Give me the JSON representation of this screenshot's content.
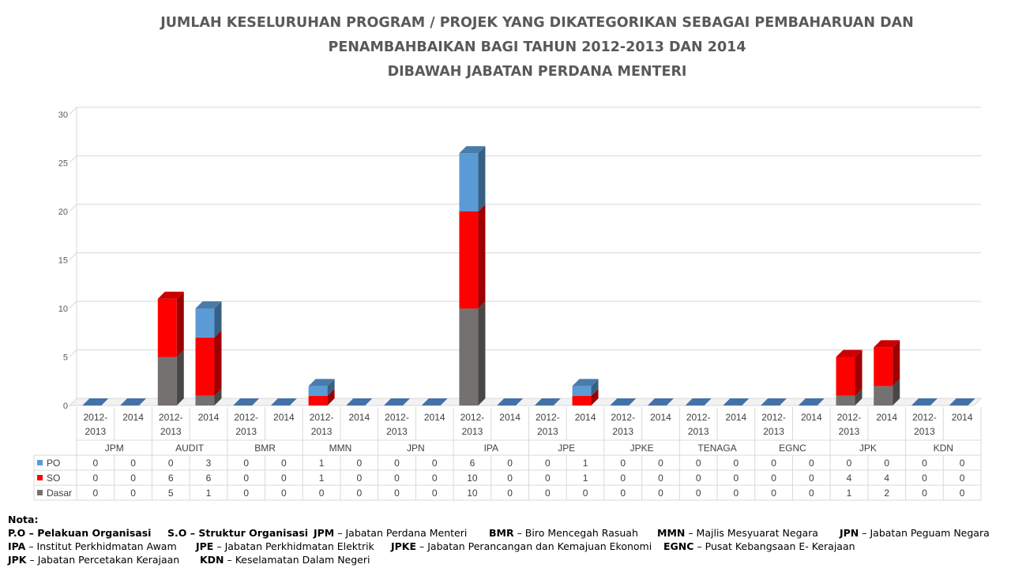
{
  "chart_data": {
    "type": "bar",
    "stacked": true,
    "title": [
      "JUMLAH KESELURUHAN PROGRAM / PROJEK YANG DIKATEGORIKAN SEBAGAI PEMBAHARUAN DAN",
      "PENAMBAHBAIKAN BAGI TAHUN 2012-2013 DAN 2014",
      "DIBAWAH JABATAN PERDANA MENTERI"
    ],
    "groups": [
      "JPM",
      "AUDIT",
      "BMR",
      "MMN",
      "JPN",
      "IPA",
      "JPE",
      "JPKE",
      "TENAGA",
      "EGNC",
      "JPK",
      "KDN"
    ],
    "subcategories": [
      [
        "2012-",
        "2013"
      ],
      [
        "2014"
      ]
    ],
    "ylim": [
      0,
      30
    ],
    "yticks": [
      0,
      5,
      10,
      15,
      20,
      25,
      30
    ],
    "grid": true,
    "legend": "data-table",
    "series": [
      {
        "name": "PO",
        "color": "#5b9bd5",
        "values": [
          0,
          0,
          0,
          3,
          0,
          0,
          1,
          0,
          0,
          0,
          6,
          0,
          0,
          1,
          0,
          0,
          0,
          0,
          0,
          0,
          0,
          0,
          0,
          0
        ]
      },
      {
        "name": "SO",
        "color": "#ff0000",
        "values": [
          0,
          0,
          6,
          6,
          0,
          0,
          1,
          0,
          0,
          0,
          10,
          0,
          0,
          1,
          0,
          0,
          0,
          0,
          0,
          0,
          4,
          4,
          0,
          0
        ]
      },
      {
        "name": "Dasar",
        "color": "#767171",
        "values": [
          0,
          0,
          5,
          1,
          0,
          0,
          0,
          0,
          0,
          0,
          10,
          0,
          0,
          0,
          0,
          0,
          0,
          0,
          0,
          0,
          1,
          2,
          0,
          0
        ]
      }
    ]
  },
  "notes": {
    "header": "Nota:",
    "rows": [
      [
        {
          "abbr": "P.O",
          "sep": " – ",
          "desc": "Pelakuan Organisasi",
          "bold_desc": true
        },
        {
          "abbr": "S.O",
          "sep": " – ",
          "desc": "Struktur Organisasi",
          "bold_desc": true
        },
        {
          "abbr": "JPM",
          "sep": " – ",
          "desc": "Jabatan Perdana Menteri",
          "bold_desc": false
        },
        {
          "abbr": "BMR",
          "sep": " – ",
          "desc": "Biro Mencegah Rasuah",
          "bold_desc": false
        },
        {
          "abbr": "MMN",
          "sep": " – ",
          "desc": "Majlis Mesyuarat Negara",
          "bold_desc": false
        },
        {
          "abbr": "JPN",
          "sep": " – ",
          "desc": "Jabatan Peguam Negara",
          "bold_desc": false
        }
      ],
      [
        {
          "abbr": "IPA",
          "sep": " – ",
          "desc": "Institut Perkhidmatan Awam",
          "bold_desc": false
        },
        {
          "abbr": "JPE",
          "sep": " – ",
          "desc": "Jabatan Perkhidmatan Elektrik",
          "bold_desc": false
        },
        {
          "abbr": "JPKE",
          "sep": " – ",
          "desc": "Jabatan Perancangan dan Kemajuan Ekonomi",
          "bold_desc": false
        },
        {
          "abbr": "EGNC",
          "sep": " – ",
          "desc": "Pusat Kebangsaan E- Kerajaan",
          "bold_desc": false
        }
      ],
      [
        {
          "abbr": "JPK",
          "sep": " – ",
          "desc": "Jabatan Percetakan Kerajaan",
          "bold_desc": false
        },
        {
          "abbr": "KDN",
          "sep": " – ",
          "desc": "Keselamatan Dalam Negeri",
          "bold_desc": false
        }
      ]
    ]
  }
}
